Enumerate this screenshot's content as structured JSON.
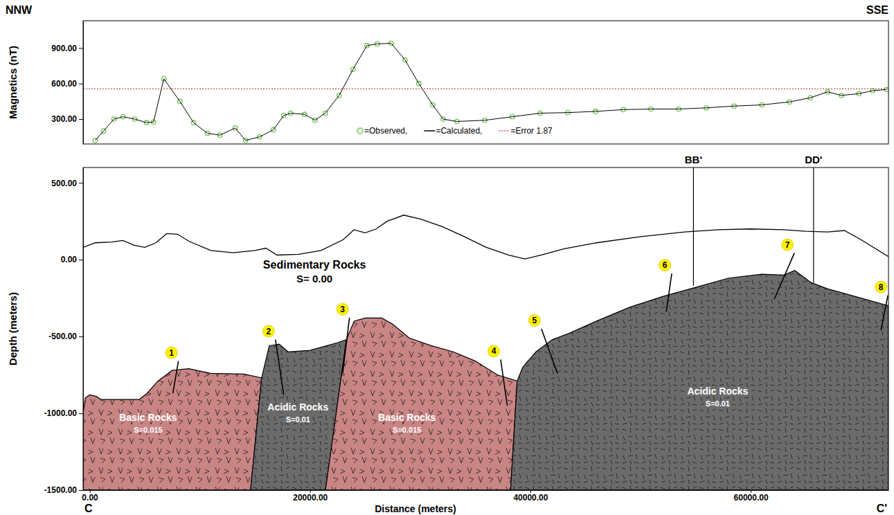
{
  "chart_data": [
    {
      "type": "line",
      "direction_labels": [
        "NNW",
        "SSE"
      ],
      "ylabel": "Magnetics (nT)",
      "x": [
        500,
        1260,
        2200,
        3020,
        4090,
        5160,
        5790,
        6730,
        8180,
        9430,
        10690,
        11820,
        13210,
        14150,
        15410,
        16670,
        17610,
        18240,
        19500,
        20440,
        21380,
        22640,
        23900,
        25160,
        26100,
        27360,
        28620,
        29870,
        31130,
        32080,
        33330,
        35850,
        38360,
        40880,
        43400,
        45910,
        48430,
        50940,
        53460,
        55970,
        58490,
        61010,
        63520,
        65410,
        66980,
        68240,
        69810,
        71070,
        72330
      ],
      "xlim": [
        -600,
        72500
      ],
      "ylim": [
        90,
        1130
      ],
      "yticks": [
        {
          "value": 300,
          "label": "300.00"
        },
        {
          "value": 600,
          "label": "600.00"
        },
        {
          "value": 900,
          "label": "900.00"
        }
      ],
      "tick_labels": "y",
      "legend": "bottom",
      "series": [
        {
          "name": "=Observed,",
          "color": "#6cc04a",
          "marker": "circle",
          "line_style": "none",
          "values": [
            120,
            200,
            300,
            320,
            300,
            270,
            275,
            640,
            450,
            270,
            180,
            165,
            225,
            120,
            150,
            210,
            330,
            350,
            340,
            290,
            350,
            500,
            720,
            920,
            935,
            940,
            800,
            600,
            420,
            300,
            280,
            290,
            320,
            350,
            355,
            365,
            380,
            385,
            385,
            395,
            410,
            420,
            445,
            480,
            530,
            500,
            515,
            540,
            550
          ]
        },
        {
          "name": "=Calculated,",
          "color": "#000000",
          "marker": "none",
          "line_style": "solid",
          "values": [
            120,
            200,
            300,
            320,
            300,
            270,
            275,
            640,
            450,
            270,
            180,
            165,
            225,
            120,
            150,
            210,
            330,
            350,
            340,
            290,
            350,
            500,
            720,
            920,
            935,
            940,
            800,
            600,
            420,
            300,
            280,
            290,
            320,
            350,
            355,
            365,
            380,
            385,
            385,
            395,
            410,
            420,
            445,
            480,
            530,
            500,
            515,
            540,
            550
          ]
        },
        {
          "name": "=Error 1.87",
          "color": "#c0504d",
          "marker": "none",
          "line_style": "dotted",
          "level": 555
        }
      ]
    },
    {
      "type": "cross_section",
      "xlabel": "Distance (meters)",
      "ylabel": "Depth (meters)",
      "end_labels": [
        "C",
        "C'"
      ],
      "xlim": [
        -600,
        72500
      ],
      "ylim": [
        -1500,
        600
      ],
      "xticks": [
        {
          "value": 0,
          "label": "0.00"
        },
        {
          "value": 20000,
          "label": "20000.00"
        },
        {
          "value": 40000,
          "label": "40000.00"
        },
        {
          "value": 60000,
          "label": "60000.00"
        }
      ],
      "yticks": [
        {
          "value": 500,
          "label": "500.00"
        },
        {
          "value": 0,
          "label": "0.00"
        },
        {
          "value": -500,
          "label": "-500.00"
        },
        {
          "value": -1000,
          "label": "-1000.00"
        },
        {
          "value": -1500,
          "label": "-1500.00"
        }
      ],
      "surface": {
        "x": [
          -600,
          500,
          2000,
          3000,
          4000,
          5000,
          6000,
          7000,
          8000,
          9000,
          11000,
          13000,
          15000,
          16000,
          17000,
          19000,
          21000,
          23000,
          24000,
          25000,
          26000,
          27000,
          28500,
          30000,
          32000,
          34000,
          36000,
          38000,
          39500,
          41000,
          43000,
          46000,
          50000,
          54000,
          57000,
          60000,
          63000,
          65000,
          67000,
          68500,
          70000,
          72500
        ],
        "y": [
          80,
          110,
          115,
          125,
          95,
          80,
          110,
          170,
          165,
          120,
          60,
          45,
          60,
          75,
          30,
          35,
          60,
          130,
          195,
          175,
          200,
          250,
          290,
          265,
          215,
          150,
          80,
          30,
          5,
          30,
          70,
          110,
          150,
          180,
          195,
          200,
          195,
          185,
          180,
          190,
          130,
          20
        ]
      },
      "units": [
        {
          "name": "Sedimentary Rocks",
          "label": "S= 0.00",
          "color": "#ffffff",
          "label_x": 20400,
          "label_y": -60
        },
        {
          "name": "Basic Rocks",
          "label": "S=0.015",
          "color": "#c98484",
          "marker": "triangle",
          "label_x": 5300,
          "label_y": -1050,
          "x": [
            -600,
            -400,
            0,
            600,
            1000,
            4500,
            5200,
            6200,
            7500,
            9000,
            11000,
            14000,
            15600,
            14600,
            -600
          ],
          "y": [
            -1000,
            -900,
            -880,
            -890,
            -910,
            -910,
            -870,
            -790,
            -720,
            -710,
            -740,
            -745,
            -770,
            -1500,
            -1500
          ]
        },
        {
          "name": "Acidic Rocks",
          "label": "S=0.01",
          "color": "#6b6b6b",
          "marker": "dash",
          "label_x": 18900,
          "label_y": -980,
          "x": [
            14600,
            15600,
            16300,
            17200,
            18000,
            20000,
            22500,
            23300,
            21400
          ],
          "y": [
            -1500,
            -770,
            -560,
            -550,
            -600,
            -590,
            -540,
            -520,
            -1500
          ]
        },
        {
          "name": "Basic Rocks",
          "label": "S=0.015",
          "color": "#c98484",
          "marker": "triangle",
          "label_x": 28800,
          "label_y": -1050,
          "x": [
            21400,
            23300,
            24000,
            25000,
            26500,
            27500,
            29000,
            31000,
            33000,
            35000,
            37000,
            38800,
            38200
          ],
          "y": [
            -1500,
            -520,
            -400,
            -380,
            -380,
            -420,
            -510,
            -560,
            -600,
            -660,
            -750,
            -790,
            -1500
          ]
        },
        {
          "name": "Acidic Rocks",
          "label": "S=0.01",
          "color": "#6b6b6b",
          "marker": "dash",
          "label_x": 57000,
          "label_y": -880,
          "x": [
            38200,
            38800,
            39300,
            40500,
            42000,
            43500,
            46000,
            49000,
            52000,
            55000,
            58000,
            61000,
            63000,
            64000,
            65500,
            67000,
            69500,
            72500,
            72500
          ],
          "y": [
            -1500,
            -790,
            -700,
            -600,
            -520,
            -480,
            -400,
            -310,
            -240,
            -180,
            -120,
            -95,
            -100,
            -70,
            -150,
            -190,
            -240,
            -300,
            -1500
          ]
        }
      ],
      "faults": [
        {
          "label": "1",
          "x": [
            8050,
            7550
          ],
          "y": [
            -660,
            -870
          ]
        },
        {
          "label": "2",
          "x": [
            16860,
            17610
          ],
          "y": [
            -520,
            -880
          ]
        },
        {
          "label": "3",
          "x": [
            23580,
            22960
          ],
          "y": [
            -377,
            -740
          ]
        },
        {
          "label": "4",
          "x": [
            37300,
            37900
          ],
          "y": [
            -650,
            -950
          ]
        },
        {
          "label": "5",
          "x": [
            41000,
            42450
          ],
          "y": [
            -450,
            -740
          ]
        },
        {
          "label": "6",
          "x": [
            52830,
            52330
          ],
          "y": [
            -90,
            -340
          ]
        },
        {
          "label": "7",
          "x": [
            63960,
            62140
          ],
          "y": [
            43,
            -256
          ]
        },
        {
          "label": "8",
          "x": [
            72450,
            71820
          ],
          "y": [
            -232,
            -459
          ]
        }
      ],
      "sections": [
        {
          "label": "BB'",
          "x": 54800,
          "y_bottom": -170
        },
        {
          "label": "DD'",
          "x": 65700,
          "y_bottom": -150
        }
      ]
    }
  ]
}
